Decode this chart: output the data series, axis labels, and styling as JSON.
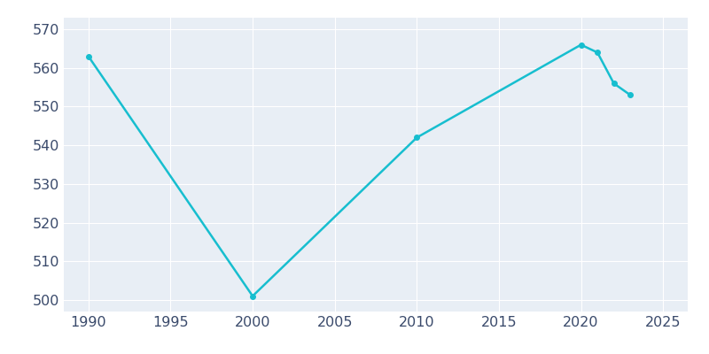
{
  "years": [
    1990,
    2000,
    2010,
    2020,
    2021,
    2022,
    2023
  ],
  "population": [
    563,
    501,
    542,
    566,
    564,
    556,
    553
  ],
  "line_color": "#17BECF",
  "marker": "o",
  "marker_size": 4,
  "line_width": 1.8,
  "background_color": "#E8EEF5",
  "fig_background_color": "#FFFFFF",
  "grid_color": "#FFFFFF",
  "ylim": [
    497,
    573
  ],
  "xlim": [
    1988.5,
    2026.5
  ],
  "yticks": [
    500,
    510,
    520,
    530,
    540,
    550,
    560,
    570
  ],
  "xticks": [
    1990,
    1995,
    2000,
    2005,
    2010,
    2015,
    2020,
    2025
  ],
  "tick_label_color": "#3A4A6B",
  "tick_fontsize": 11.5
}
